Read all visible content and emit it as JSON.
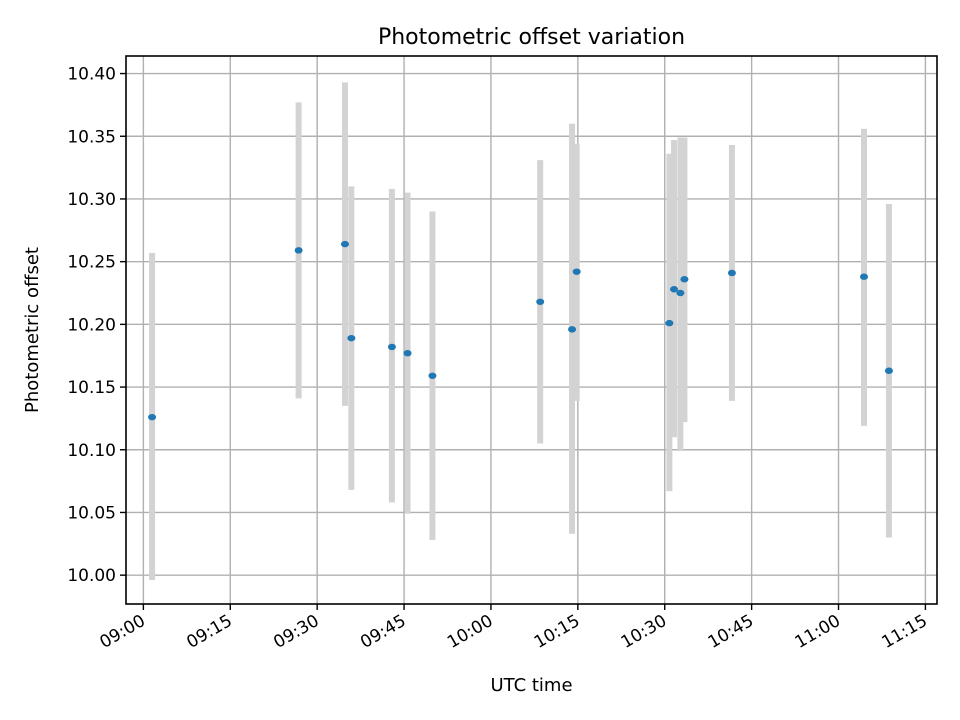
{
  "chart_data": {
    "type": "scatter",
    "title": "Photometric offset variation",
    "xlabel": "UTC time",
    "ylabel": "Photometric offset",
    "x_axis_kind": "time",
    "xlim": [
      "08:57",
      "11:17"
    ],
    "ylim": [
      9.977,
      10.414
    ],
    "grid": true,
    "colors": {
      "points": "#1f77b4",
      "errorbars": "#d3d3d3"
    },
    "x_ticks": [
      "09:00",
      "09:15",
      "09:30",
      "09:45",
      "10:00",
      "10:15",
      "10:30",
      "10:45",
      "11:00",
      "11:15"
    ],
    "y_ticks": [
      "10.00",
      "10.05",
      "10.10",
      "10.15",
      "10.20",
      "10.25",
      "10.30",
      "10.35",
      "10.40"
    ],
    "series": [
      {
        "points": [
          {
            "x": "09:01:30",
            "y": 10.126,
            "ylow": 9.996,
            "yhigh": 10.257
          },
          {
            "x": "09:26:48",
            "y": 10.259,
            "ylow": 10.141,
            "yhigh": 10.377
          },
          {
            "x": "09:34:48",
            "y": 10.264,
            "ylow": 10.135,
            "yhigh": 10.393
          },
          {
            "x": "09:35:54",
            "y": 10.189,
            "ylow": 10.068,
            "yhigh": 10.31
          },
          {
            "x": "09:42:54",
            "y": 10.182,
            "ylow": 10.058,
            "yhigh": 10.308
          },
          {
            "x": "09:45:36",
            "y": 10.177,
            "ylow": 10.049,
            "yhigh": 10.305
          },
          {
            "x": "09:49:54",
            "y": 10.159,
            "ylow": 10.028,
            "yhigh": 10.29
          },
          {
            "x": "10:08:30",
            "y": 10.218,
            "ylow": 10.105,
            "yhigh": 10.331
          },
          {
            "x": "10:14:00",
            "y": 10.196,
            "ylow": 10.033,
            "yhigh": 10.36
          },
          {
            "x": "10:14:48",
            "y": 10.242,
            "ylow": 10.139,
            "yhigh": 10.344
          },
          {
            "x": "10:30:48",
            "y": 10.201,
            "ylow": 10.067,
            "yhigh": 10.336
          },
          {
            "x": "10:31:36",
            "y": 10.228,
            "ylow": 10.11,
            "yhigh": 10.347
          },
          {
            "x": "10:32:42",
            "y": 10.225,
            "ylow": 10.099,
            "yhigh": 10.349
          },
          {
            "x": "10:33:24",
            "y": 10.236,
            "ylow": 10.122,
            "yhigh": 10.349
          },
          {
            "x": "10:41:36",
            "y": 10.241,
            "ylow": 10.139,
            "yhigh": 10.343
          },
          {
            "x": "11:04:24",
            "y": 10.238,
            "ylow": 10.119,
            "yhigh": 10.356
          },
          {
            "x": "11:08:42",
            "y": 10.163,
            "ylow": 10.03,
            "yhigh": 10.296
          }
        ]
      }
    ]
  }
}
